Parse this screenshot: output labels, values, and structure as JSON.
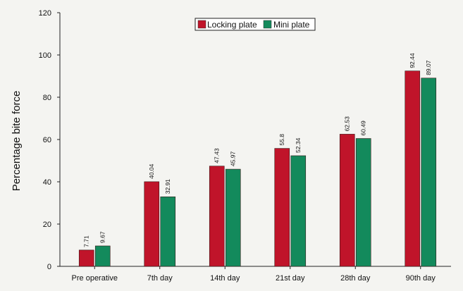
{
  "chart_data": {
    "type": "bar",
    "categories": [
      "Pre operative",
      "7th day",
      "14th day",
      "21st day",
      "28th day",
      "90th day"
    ],
    "series": [
      {
        "name": "Locking plate",
        "color": "#c0142a",
        "values": [
          7.71,
          40.04,
          47.43,
          55.8,
          62.53,
          92.44
        ]
      },
      {
        "name": "Mini plate",
        "color": "#138a5c",
        "values": [
          9.67,
          32.91,
          45.97,
          52.34,
          60.49,
          89.07
        ]
      }
    ],
    "value_labels": [
      [
        "7.71",
        "40.04",
        "47.43",
        "55.8",
        "62.53",
        "92.44"
      ],
      [
        "9.67",
        "32.91",
        "45.97",
        "52.34",
        "60.49",
        "89.07"
      ]
    ],
    "ylabel": "Percentage bite force",
    "xlabel": "",
    "ylim": [
      0,
      120
    ],
    "yticks": [
      "0",
      "20",
      "40",
      "60",
      "80",
      "100",
      "120"
    ],
    "legend_position": "top-center",
    "grid": false
  }
}
